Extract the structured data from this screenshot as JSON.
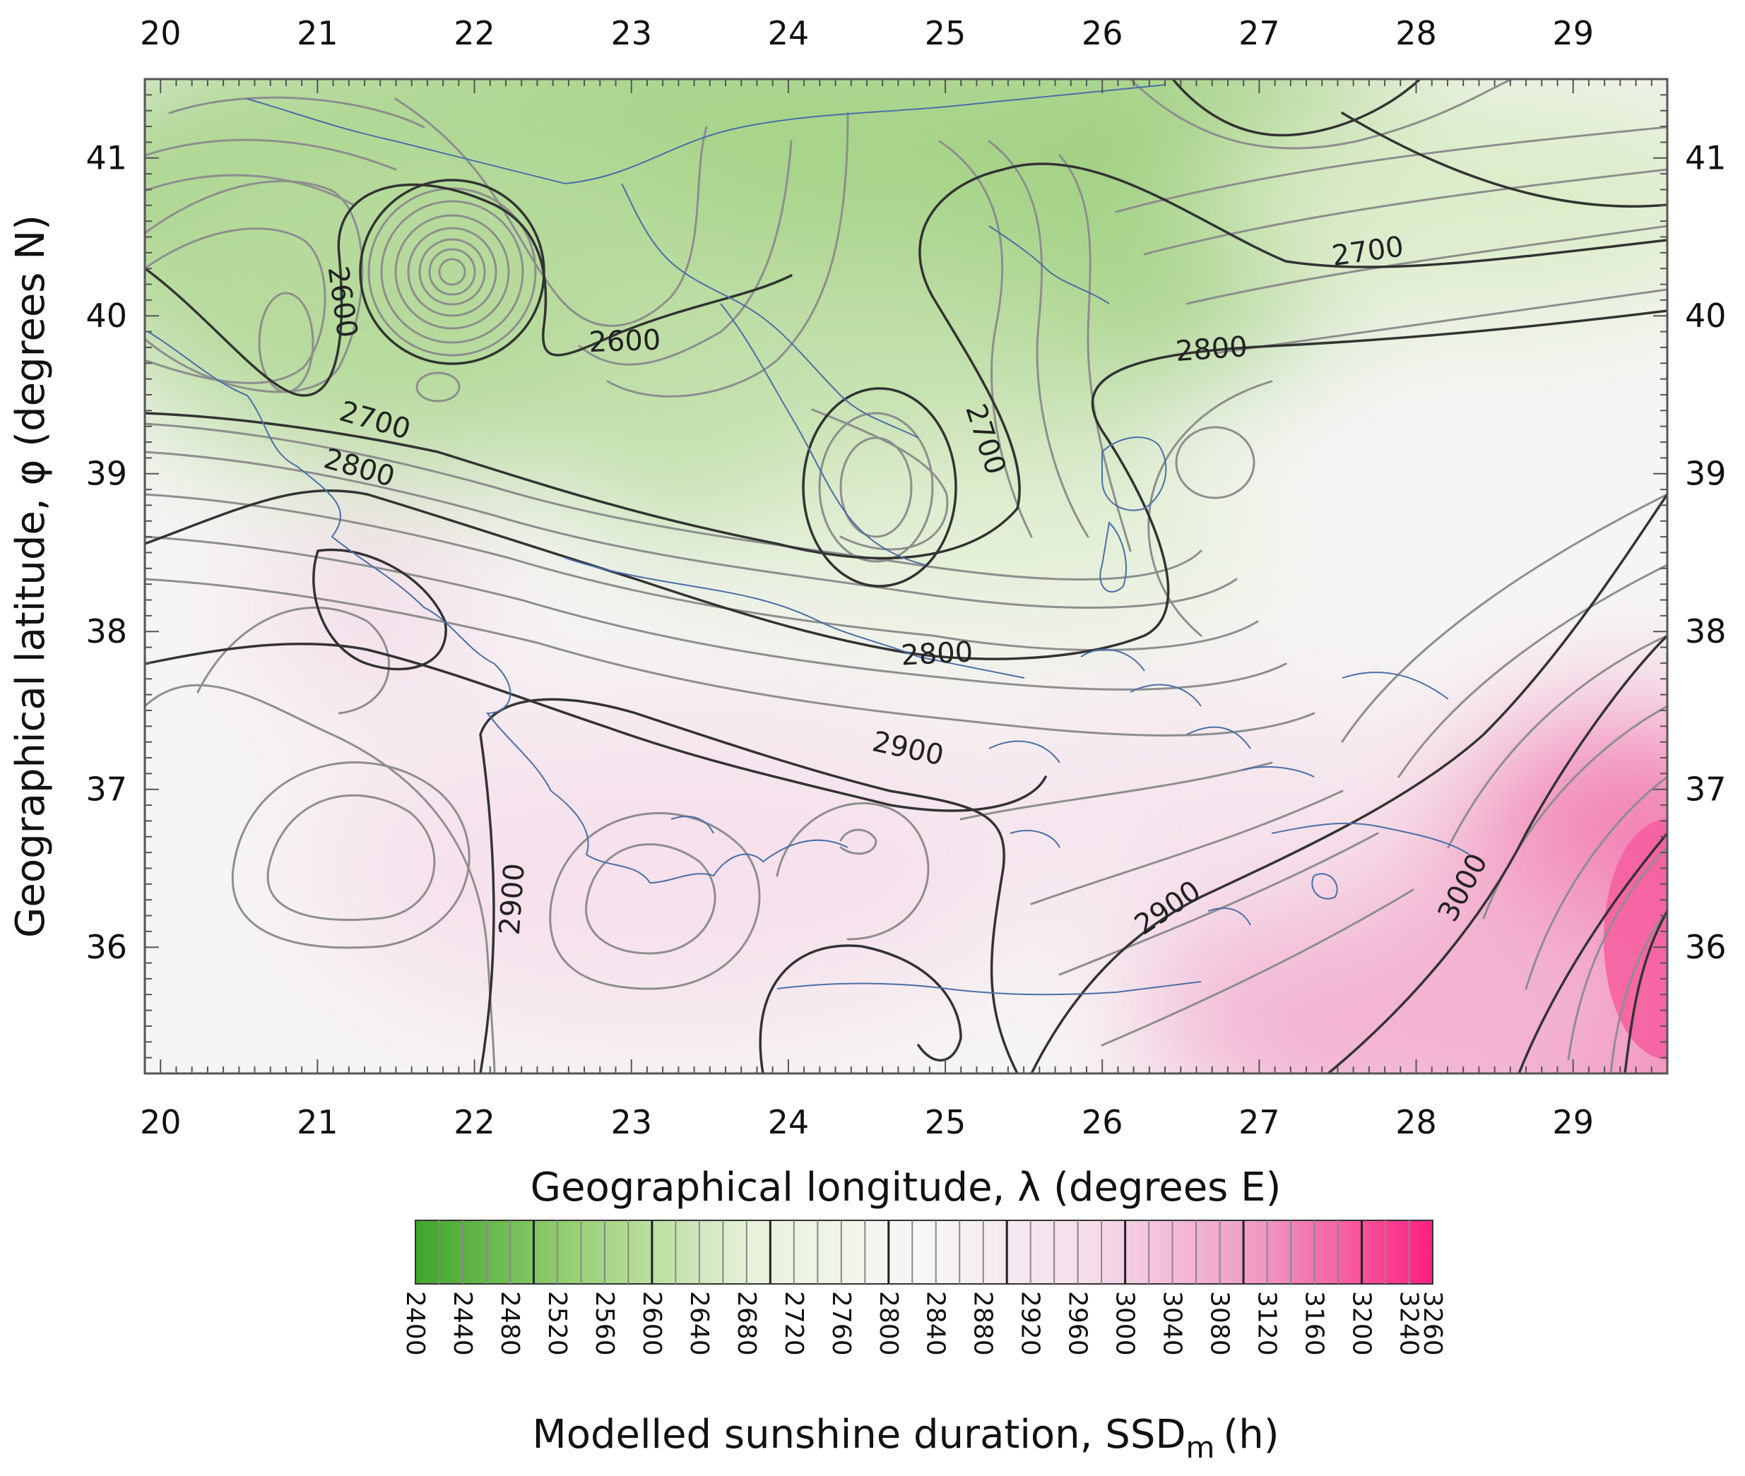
{
  "chart_data": {
    "type": "heatmap",
    "subtype": "contour-map",
    "xlabel": "Geographical longitude, λ (degrees E)",
    "ylabel": "Geographical latitude, φ (degrees N)",
    "xlim": [
      19.9,
      29.6
    ],
    "ylim": [
      35.2,
      41.5
    ],
    "x_ticks": [
      20,
      21,
      22,
      23,
      24,
      25,
      26,
      27,
      28,
      29
    ],
    "y_ticks": [
      36,
      37,
      38,
      39,
      40,
      41
    ],
    "colorbar": {
      "title": "Modelled sunshine duration, SSD",
      "title_sub": "m",
      "title_unit": "(h)",
      "min": 2400,
      "max": 3260,
      "ticks": [
        2400,
        2440,
        2480,
        2520,
        2560,
        2600,
        2640,
        2680,
        2720,
        2760,
        2800,
        2840,
        2880,
        2920,
        2960,
        3000,
        3040,
        3080,
        3120,
        3160,
        3200,
        3240,
        3260
      ],
      "colors": [
        "#3fa52b",
        "#9ed27a",
        "#e8f2dc",
        "#f7f7f7",
        "#f5dcea",
        "#ef98c2",
        "#ff1f7f"
      ]
    },
    "contour_labels": [
      {
        "value": "2600",
        "lon": 21.1,
        "lat": 40.08,
        "angle": 82
      },
      {
        "value": "2600",
        "lon": 22.96,
        "lat": 39.78,
        "angle": -2
      },
      {
        "value": "2700",
        "lon": 21.35,
        "lat": 39.28,
        "angle": 16
      },
      {
        "value": "2800",
        "lon": 21.25,
        "lat": 38.98,
        "angle": 16
      },
      {
        "value": "2700",
        "lon": 27.7,
        "lat": 40.35,
        "angle": -8
      },
      {
        "value": "2800",
        "lon": 26.7,
        "lat": 39.73,
        "angle": -4
      },
      {
        "value": "2700",
        "lon": 25.2,
        "lat": 39.2,
        "angle": 72
      },
      {
        "value": "2800",
        "lon": 24.95,
        "lat": 37.8,
        "angle": -3
      },
      {
        "value": "2900",
        "lon": 24.75,
        "lat": 37.2,
        "angle": 12
      },
      {
        "value": "2900",
        "lon": 22.3,
        "lat": 36.3,
        "angle": -86
      },
      {
        "value": "2900",
        "lon": 26.45,
        "lat": 36.2,
        "angle": -34
      },
      {
        "value": "3000",
        "lon": 28.35,
        "lat": 36.35,
        "angle": -62
      }
    ]
  }
}
